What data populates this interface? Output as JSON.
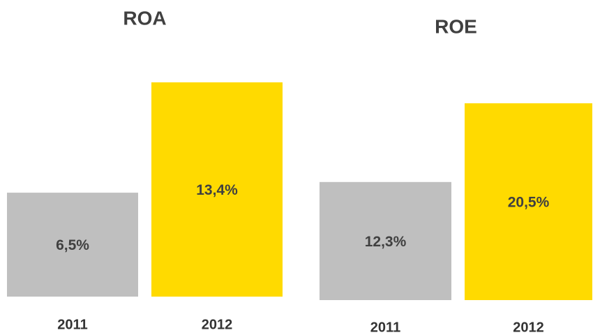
{
  "chart_data": [
    {
      "type": "bar",
      "title": "ROA",
      "categories": [
        "2011",
        "2012"
      ],
      "values": [
        6.5,
        13.4
      ],
      "value_labels": [
        "6,5%",
        "13,4%"
      ],
      "colors": [
        "#bfbfbf",
        "#ffda00"
      ]
    },
    {
      "type": "bar",
      "title": "ROE",
      "categories": [
        "2011",
        "2012"
      ],
      "values": [
        12.3,
        20.5
      ],
      "value_labels": [
        "12,3%",
        "20,5%"
      ],
      "colors": [
        "#bfbfbf",
        "#ffda00"
      ]
    }
  ]
}
